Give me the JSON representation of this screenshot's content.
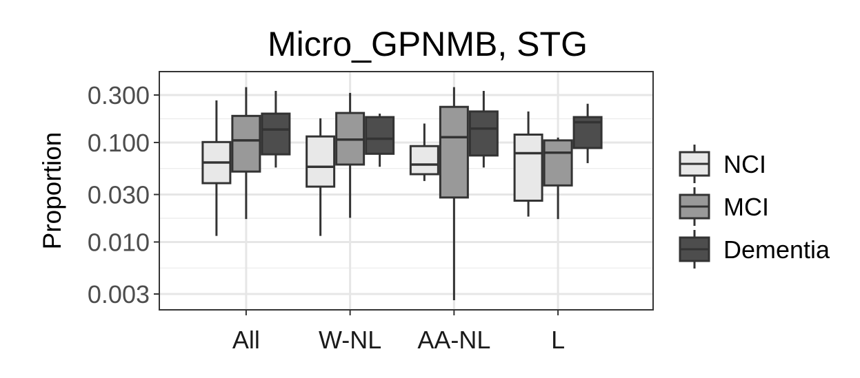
{
  "chart_data": {
    "type": "boxplot",
    "title": "Micro_GPNMB, STG",
    "xlabel": "",
    "ylabel": "Proportion",
    "yscale": "log10",
    "ylim": [
      0.0022,
      0.45
    ],
    "yticks": [
      0.003,
      0.01,
      0.03,
      0.1,
      0.3
    ],
    "ytick_labels": [
      "0.003",
      "0.010",
      "0.030",
      "0.100",
      "0.300"
    ],
    "categories": [
      "All",
      "W-NL",
      "AA-NL",
      "L"
    ],
    "grid": true,
    "legend_position": "right",
    "series": [
      {
        "name": "NCI",
        "color": "#e8e8e8",
        "boxes": [
          {
            "whisker_low": 0.0115,
            "q1": 0.039,
            "median": 0.063,
            "q3": 0.101,
            "whisker_high": 0.265
          },
          {
            "whisker_low": 0.0115,
            "q1": 0.036,
            "median": 0.057,
            "q3": 0.115,
            "whisker_high": 0.175
          },
          {
            "whisker_low": 0.041,
            "q1": 0.048,
            "median": 0.06,
            "q3": 0.092,
            "whisker_high": 0.155
          },
          {
            "whisker_low": 0.018,
            "q1": 0.026,
            "median": 0.078,
            "q3": 0.12,
            "whisker_high": 0.205
          }
        ]
      },
      {
        "name": "MCI",
        "color": "#999999",
        "boxes": [
          {
            "whisker_low": 0.017,
            "q1": 0.051,
            "median": 0.105,
            "q3": 0.185,
            "whisker_high": 0.36
          },
          {
            "whisker_low": 0.0175,
            "q1": 0.06,
            "median": 0.107,
            "q3": 0.198,
            "whisker_high": 0.315
          },
          {
            "whisker_low": 0.0026,
            "q1": 0.028,
            "median": 0.113,
            "q3": 0.228,
            "whisker_high": 0.36
          },
          {
            "whisker_low": 0.017,
            "q1": 0.037,
            "median": 0.079,
            "q3": 0.105,
            "whisker_high": 0.112
          }
        ]
      },
      {
        "name": "Dementia",
        "color": "#4d4d4d",
        "boxes": [
          {
            "whisker_low": 0.056,
            "q1": 0.076,
            "median": 0.135,
            "q3": 0.195,
            "whisker_high": 0.33
          },
          {
            "whisker_low": 0.057,
            "q1": 0.077,
            "median": 0.109,
            "q3": 0.18,
            "whisker_high": 0.195
          },
          {
            "whisker_low": 0.056,
            "q1": 0.074,
            "median": 0.138,
            "q3": 0.205,
            "whisker_high": 0.33
          },
          {
            "whisker_low": 0.062,
            "q1": 0.088,
            "median": 0.16,
            "q3": 0.18,
            "whisker_high": 0.245
          }
        ]
      }
    ]
  }
}
